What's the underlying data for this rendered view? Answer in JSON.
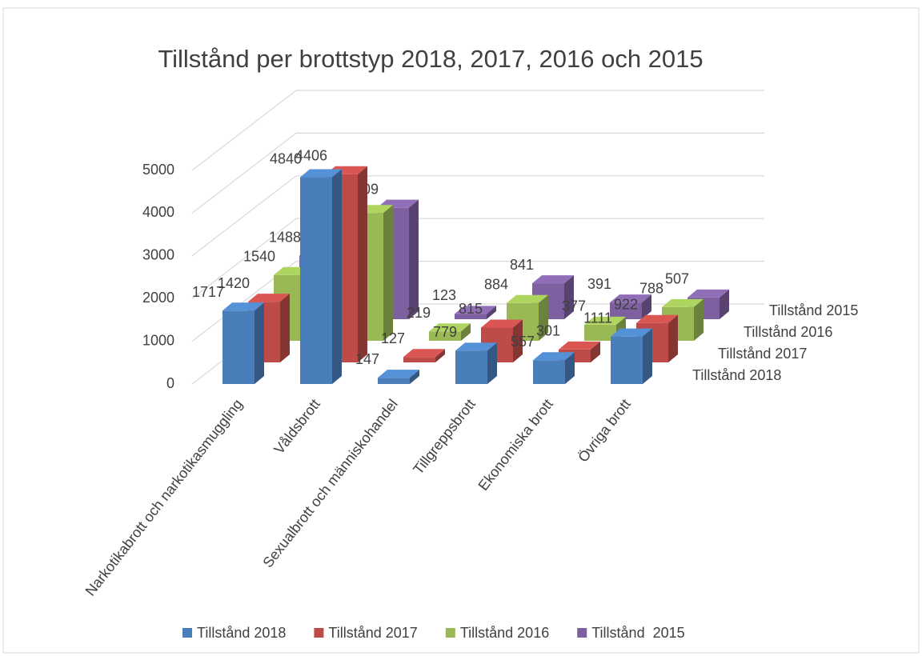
{
  "chart_data": {
    "type": "bar3d",
    "title": "Tillstånd per brottstyp 2018, 2017, 2016 och 2015",
    "categories": [
      "Narkotikabrott och narkotikasmuggling",
      "Våldsbrott",
      "Sexualbrott och människohandel",
      "Tillgreppsbrott",
      "Ekonomiska brott",
      "Övriga brott"
    ],
    "series": [
      {
        "name": "Tillstånd 2018",
        "color": "#4a7ebb",
        "values": [
          1717,
          4840,
          147,
          779,
          557,
          1111
        ]
      },
      {
        "name": "Tillstånd 2017",
        "color": "#be4b48",
        "values": [
          1420,
          4406,
          127,
          815,
          301,
          922
        ]
      },
      {
        "name": "Tillstånd 2016",
        "color": "#98b954",
        "values": [
          1540,
          2992,
          219,
          884,
          377,
          788
        ]
      },
      {
        "name": "Tillstånd  2015",
        "color": "#7d60a0",
        "values": [
          1488,
          2609,
          123,
          841,
          391,
          507
        ]
      }
    ],
    "ylim": [
      0,
      5000
    ],
    "yticks": [
      0,
      1000,
      2000,
      3000,
      4000,
      5000
    ],
    "grid": true,
    "legend": "bottom"
  }
}
